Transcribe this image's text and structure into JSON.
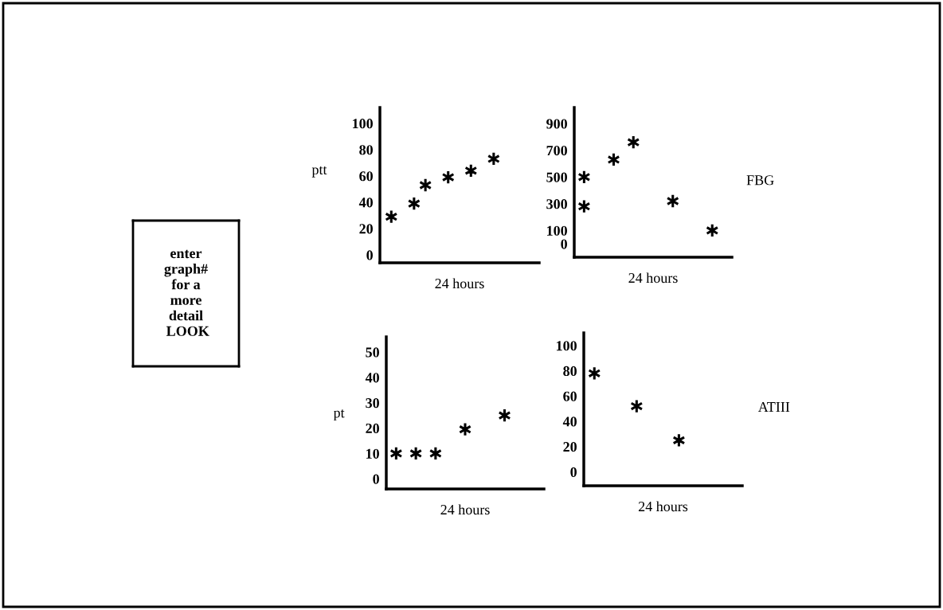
{
  "chart_data": [
    {
      "type": "other",
      "annotations": [
        "enter\ngraph#\nfor a\nmore\ndetail\n LOOK"
      ]
    },
    {
      "type": "scatter",
      "ylabel": "ptt",
      "xlabel": "24 hours",
      "marker": "cross",
      "grid": false,
      "legend": false,
      "tick_labels": "y",
      "categories": [
        null,
        null,
        null,
        null,
        null,
        null,
        null,
        null,
        null,
        null,
        null,
        null,
        null
      ],
      "ylim": [
        -6,
        112
      ],
      "yticks": [
        0,
        20,
        40,
        60,
        80,
        100
      ],
      "series": [
        {
          "color": "#000000",
          "values": [
            29,
            null,
            39,
            53,
            null,
            59,
            null,
            64,
            null,
            73,
            null,
            null,
            null
          ]
        }
      ]
    },
    {
      "type": "scatter",
      "ylabel": "FBG",
      "xlabel": "24 hours",
      "marker": "cross",
      "grid": false,
      "legend": false,
      "tick_labels": "y",
      "categories": [
        null,
        null,
        null,
        null,
        null,
        null,
        null,
        null,
        null,
        null,
        null,
        null,
        null,
        null,
        null
      ],
      "ylim": [
        -100,
        1020
      ],
      "yticks": [
        0,
        100,
        300,
        500,
        700,
        900
      ],
      "series": [
        {
          "color": "#000000",
          "values": [
            500,
            null,
            null,
            630,
            null,
            760,
            null,
            null,
            null,
            320,
            null,
            null,
            null,
            100,
            null
          ]
        },
        {
          "color": "#000000",
          "values": [
            280,
            null,
            null,
            null,
            null,
            null,
            null,
            null,
            null,
            null,
            null,
            null,
            null,
            null,
            null
          ]
        }
      ]
    },
    {
      "type": "scatter",
      "ylabel": "pt",
      "xlabel": "24 hours",
      "marker": "cross",
      "grid": false,
      "legend": false,
      "tick_labels": "y",
      "categories": [
        null,
        null,
        null,
        null,
        null,
        null,
        null,
        null,
        null,
        null,
        null,
        null,
        null,
        null,
        null
      ],
      "ylim": [
        -4,
        56
      ],
      "yticks": [
        0,
        10,
        20,
        30,
        40,
        50
      ],
      "series": [
        {
          "color": "#000000",
          "values": [
            10,
            null,
            10,
            null,
            10,
            null,
            null,
            19.5,
            null,
            null,
            null,
            25,
            null,
            null,
            null
          ]
        }
      ]
    },
    {
      "type": "scatter",
      "ylabel": "ATIII",
      "xlabel": "24 hours",
      "marker": "cross",
      "grid": false,
      "legend": false,
      "tick_labels": "y",
      "categories": [
        null,
        null,
        null,
        null,
        null,
        null,
        null,
        null,
        null,
        null,
        null,
        null,
        null,
        null
      ],
      "ylim": [
        -11,
        110
      ],
      "yticks": [
        0,
        20,
        40,
        60,
        80,
        100
      ],
      "series": [
        {
          "color": "#000000",
          "values": [
            78,
            null,
            null,
            null,
            52,
            null,
            null,
            null,
            25,
            null,
            null,
            null,
            null,
            null
          ]
        }
      ]
    }
  ]
}
